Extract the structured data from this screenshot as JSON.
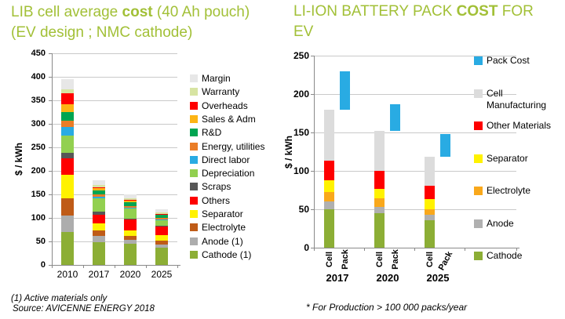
{
  "colors": {
    "accent_green": "#A2C037"
  },
  "chart_data": [
    {
      "type": "bar",
      "stacked": true,
      "title": "LIB cell average cost (40 Ah pouch) (EV design ; NMC cathode)",
      "title_rich": {
        "pre": "LIB cell average ",
        "bold": "cost",
        "post": " (40 Ah pouch)",
        "line2": "(EV design ; NMC cathode)"
      },
      "xlabel": "",
      "ylabel": "$ / kWh",
      "ylim": [
        0,
        450
      ],
      "ytick_step": 50,
      "grid": true,
      "legend_position": "right",
      "categories": [
        "2010",
        "2017",
        "2020",
        "2025"
      ],
      "series": [
        {
          "name": "Cathode (1)",
          "color": "#8CAE35",
          "values": [
            70,
            48,
            45,
            36
          ]
        },
        {
          "name": "Anode (1)",
          "color": "#ADADAD",
          "values": [
            35,
            13,
            8,
            7
          ]
        },
        {
          "name": "Electrolyte",
          "color": "#BF5B17",
          "values": [
            36,
            13,
            8,
            8
          ]
        },
        {
          "name": "Separator",
          "color": "#FFF200",
          "values": [
            50,
            14,
            12,
            12
          ]
        },
        {
          "name": "Others",
          "color": "#FE0000",
          "values": [
            36,
            19,
            23,
            18
          ]
        },
        {
          "name": "Scraps",
          "color": "#575757",
          "values": [
            11,
            6,
            2,
            3
          ]
        },
        {
          "name": "Depreciation",
          "color": "#92D050",
          "values": [
            37,
            28,
            22,
            12
          ]
        },
        {
          "name": "Direct labor",
          "color": "#29ABE3",
          "values": [
            19,
            4,
            2,
            1
          ]
        },
        {
          "name": "Energy, utilities",
          "color": "#EA7D27",
          "values": [
            12,
            5,
            3,
            3
          ]
        },
        {
          "name": "R&D",
          "color": "#00A551",
          "values": [
            19,
            8,
            8,
            6
          ]
        },
        {
          "name": "Sales & Adm",
          "color": "#FDB414",
          "values": [
            17,
            5,
            4,
            2
          ]
        },
        {
          "name": "Overheads",
          "color": "#FE0000",
          "values": [
            23,
            2,
            2,
            1
          ]
        },
        {
          "name": "Warranty",
          "color": "#D7E4A2",
          "values": [
            8,
            5,
            3,
            3
          ]
        },
        {
          "name": "Margin",
          "color": "#E7E7E7",
          "values": [
            22,
            10,
            8,
            7
          ]
        }
      ],
      "footnotes": [
        "(1) Active materials only",
        "Source: AVICENNE ENERGY 2018"
      ]
    },
    {
      "type": "bar",
      "stacked": true,
      "title": "LI-ION BATTERY PACK COST FOR EV",
      "title_rich": {
        "pre": "LI-ION BATTERY PACK ",
        "bold": "COST",
        "post": " FOR EV",
        "line2": ""
      },
      "xlabel": "",
      "ylabel": "$ / kWh",
      "ylim": [
        0,
        250
      ],
      "ytick_step": 50,
      "grid": true,
      "legend_position": "right",
      "groups": [
        "2017",
        "2020",
        "2025"
      ],
      "bar_labels": [
        "Cell",
        "Pack"
      ],
      "series": [
        {
          "name": "Cathode",
          "color": "#8CAE35",
          "values": [
            50,
            45,
            36
          ]
        },
        {
          "name": "Anode",
          "color": "#B0B0B0",
          "values": [
            10,
            8,
            7
          ]
        },
        {
          "name": "Electrolyte",
          "color": "#F9A81B",
          "values": [
            12,
            11,
            7
          ]
        },
        {
          "name": "Separator",
          "color": "#FFF200",
          "values": [
            16,
            13,
            13
          ]
        },
        {
          "name": "Other Materials",
          "color": "#FE0000",
          "values": [
            25,
            23,
            18
          ]
        },
        {
          "name": "Cell Manufacturing",
          "color": "#DCDCDC",
          "values": [
            67,
            52,
            37
          ]
        }
      ],
      "pack_series": {
        "name": "Pack Cost",
        "color": "#29ABE3",
        "ranges": [
          [
            180,
            230
          ],
          [
            152,
            187
          ],
          [
            118,
            148
          ]
        ]
      },
      "footnotes": [
        "* For  Production > 100 000 packs/year"
      ]
    }
  ]
}
